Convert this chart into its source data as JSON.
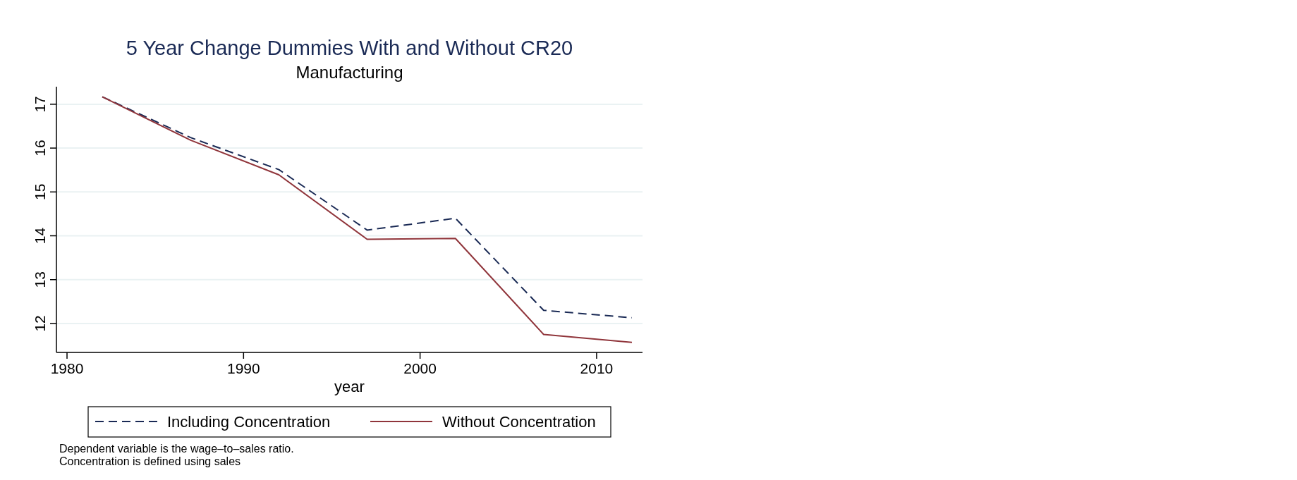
{
  "chart_data": {
    "type": "line",
    "title": "5 Year Change Dummies With and Without CR20",
    "subtitle": "Manufacturing",
    "xlabel": "year",
    "x": [
      1982,
      1987,
      1992,
      1997,
      2002,
      2007,
      2012
    ],
    "series": [
      {
        "name": "Including Concentration",
        "color": "#1a2a55",
        "line_style": "dashed",
        "values": [
          17.17,
          16.24,
          15.51,
          14.13,
          14.4,
          12.3,
          12.13
        ]
      },
      {
        "name": "Without Concentration",
        "color": "#90353b",
        "line_style": "solid",
        "values": [
          17.17,
          16.18,
          15.39,
          13.92,
          13.94,
          11.75,
          11.57
        ]
      }
    ],
    "xlim": [
      1979.4,
      2012.6
    ],
    "xticks": [
      1980,
      1990,
      2000,
      2010
    ],
    "ylim": [
      11.34,
      17.4
    ],
    "yticks": [
      12,
      13,
      14,
      15,
      16,
      17
    ],
    "grid": "y",
    "legend": "bottom",
    "marker": "none",
    "annotations": [
      "Dependent variable is the wage–to–sales ratio.",
      "Concentration is defined using sales"
    ]
  }
}
